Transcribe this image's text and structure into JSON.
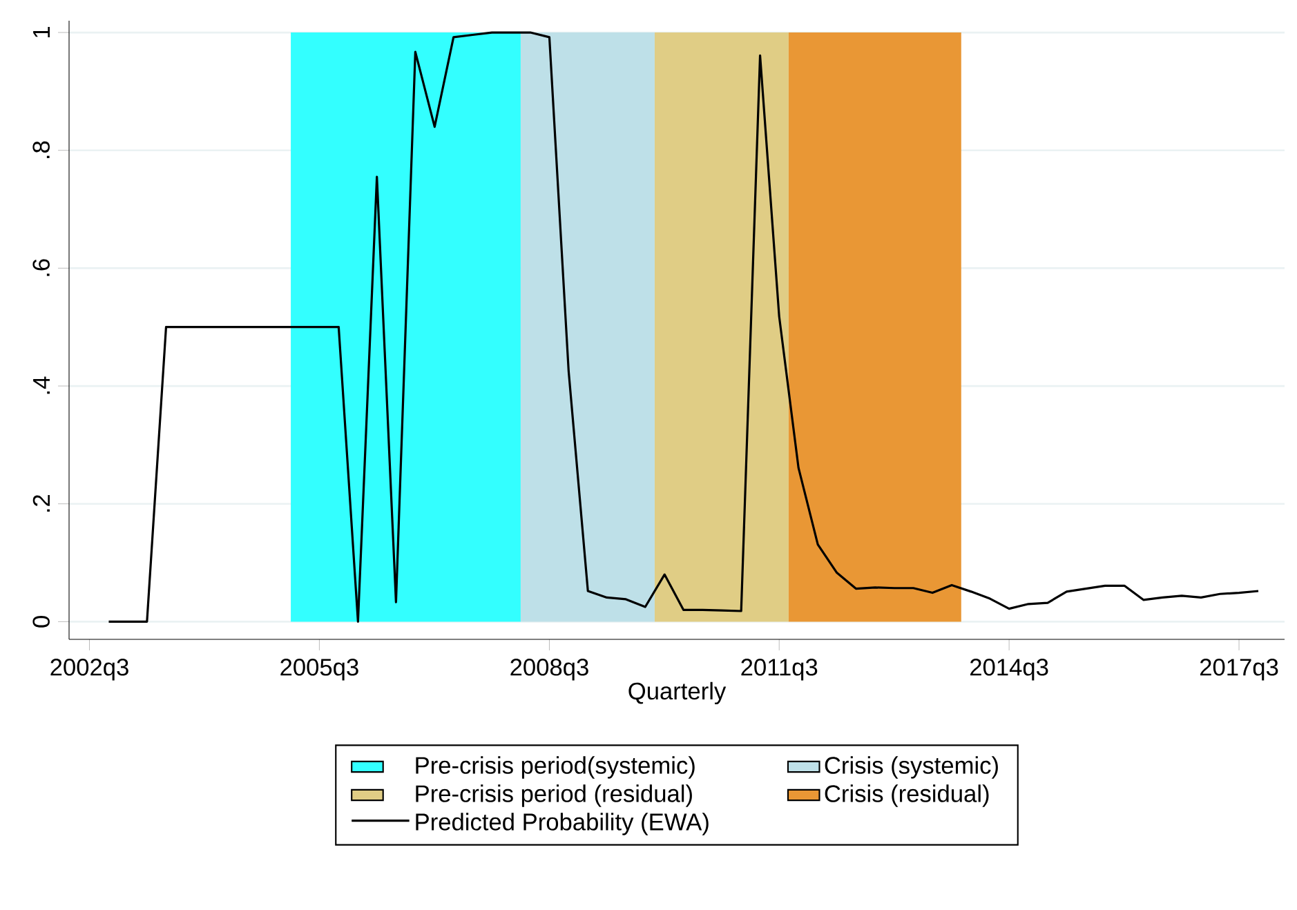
{
  "chart_data": {
    "type": "line",
    "xlabel": "Quarterly",
    "x": [
      "2002-10",
      "2003-01",
      "2003-04",
      "2003-07",
      "2003-10",
      "2004-01",
      "2004-04",
      "2004-07",
      "2004-10",
      "2005-01",
      "2005-04",
      "2005-07",
      "2005-10",
      "2006-01",
      "2006-04",
      "2006-07",
      "2006-10",
      "2007-01",
      "2007-04",
      "2007-07",
      "2007-10",
      "2008-01",
      "2008-04",
      "2008-07",
      "2008-10",
      "2009-01",
      "2009-04",
      "2009-07",
      "2009-10",
      "2010-01",
      "2010-04",
      "2010-07",
      "2010-10",
      "2011-01",
      "2011-04",
      "2011-07",
      "2011-10",
      "2012-01",
      "2012-04",
      "2012-07",
      "2012-10",
      "2013-01",
      "2013-04",
      "2013-07",
      "2013-10",
      "2014-01",
      "2014-04",
      "2014-07",
      "2014-10",
      "2015-01",
      "2015-04",
      "2015-07",
      "2015-10",
      "2016-01",
      "2016-04",
      "2016-07",
      "2016-10",
      "2017-01",
      "2017-04",
      "2017-07",
      "2017-10"
    ],
    "series": [
      {
        "name": "Predicted Probability (EWA)",
        "color": "#000000",
        "values": [
          0,
          0,
          0,
          0.5,
          0.5,
          0.5,
          0.5,
          0.5,
          0.5,
          0.5,
          0.5,
          0.5,
          0.5,
          0,
          0.755,
          0.033,
          0.967,
          0.84,
          0.992,
          0.996,
          1.0,
          1.0,
          1.0,
          0.992,
          0.425,
          0.052,
          0.041,
          0.038,
          0.025,
          0.08,
          0.02,
          0.02,
          0.019,
          0.018,
          0.961,
          0.518,
          0.261,
          0.131,
          0.083,
          0.056,
          0.058,
          0.057,
          0.057,
          0.049,
          0.062,
          0.051,
          0.039,
          0.022,
          0.03,
          0.032,
          0.051,
          0.056,
          0.061,
          0.061,
          0.037,
          0.041,
          0.044,
          0.041,
          0.047,
          0.049,
          0.052
        ]
      }
    ],
    "bands": [
      {
        "axis": "x",
        "from": "2005-02-15",
        "to": "2008-02-15",
        "label": "Pre-crisis period(systemic)",
        "color": "#33ffff"
      },
      {
        "axis": "x",
        "from": "2008-02-15",
        "to": "2009-11-15",
        "label": "Crisis (systemic)",
        "color": "#bee0e8"
      },
      {
        "axis": "x",
        "from": "2009-11-15",
        "to": "2011-08-15",
        "label": "Pre-crisis period (residual)",
        "color": "#e0cd85"
      },
      {
        "axis": "x",
        "from": "2011-08-15",
        "to": "2013-11-15",
        "label": "Crisis (residual)",
        "color": "#e99735"
      }
    ],
    "xlim": [
      "2002-03-26",
      "2018-02-03"
    ],
    "ylim": [
      -0.03,
      1.02
    ],
    "xticks": [
      {
        "value": "2002-07",
        "label": "2002q3"
      },
      {
        "value": "2005-07",
        "label": "2005q3"
      },
      {
        "value": "2008-07",
        "label": "2008q3"
      },
      {
        "value": "2011-07",
        "label": "2011q3"
      },
      {
        "value": "2014-07",
        "label": "2014q3"
      },
      {
        "value": "2017-07",
        "label": "2017q3"
      }
    ],
    "yticks": [
      0,
      {
        "value": 0.2,
        "label": ".2"
      },
      {
        "value": 0.4,
        "label": ".4"
      },
      {
        "value": 0.6,
        "label": ".6"
      },
      {
        "value": 0.8,
        "label": ".8"
      },
      1
    ],
    "grid": "y",
    "legend": "bottom",
    "marker": "none",
    "line_style": "solid"
  }
}
